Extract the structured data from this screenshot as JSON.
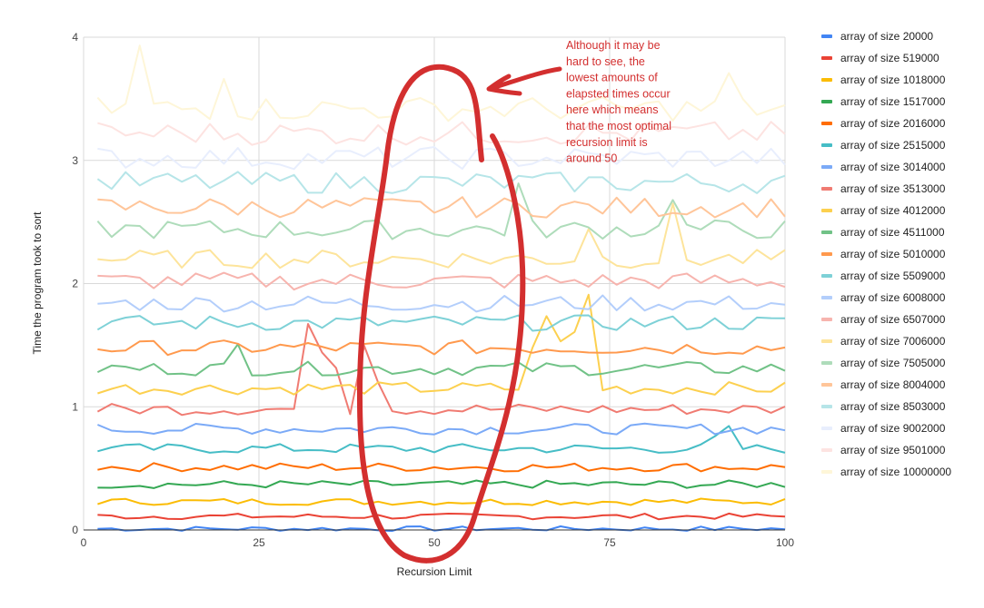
{
  "chart_data": {
    "type": "line",
    "title": "",
    "xlabel": "Recursion Limit",
    "ylabel": "Time the program took to sort",
    "xlim": [
      0,
      100
    ],
    "ylim": [
      0,
      4
    ],
    "x_ticks": [
      "0",
      "25",
      "50",
      "75",
      "100"
    ],
    "y_ticks": [
      "0",
      "1",
      "2",
      "3",
      "4"
    ],
    "grid": true,
    "legend_position": "right",
    "annotation": {
      "lines": [
        "Although it may be",
        "hard to see, the",
        "lowest amounts of",
        "elapsted times occur",
        "here which means",
        "that the most optimal",
        "recursion limit is",
        "around 50"
      ],
      "color": "#d32f2f"
    },
    "series": [
      {
        "name": "array of size 20000",
        "color": "#4285f4",
        "base": 0.01,
        "opacity": 1
      },
      {
        "name": "array of size 519000",
        "color": "#ea4335",
        "base": 0.11,
        "opacity": 1
      },
      {
        "name": "array of size 1018000",
        "color": "#fbbc04",
        "base": 0.23,
        "opacity": 1
      },
      {
        "name": "array of size 1517000",
        "color": "#34a853",
        "base": 0.37,
        "opacity": 1
      },
      {
        "name": "array of size 2016000",
        "color": "#ff6d01",
        "base": 0.51,
        "opacity": 1
      },
      {
        "name": "array of size 2515000",
        "color": "#46bdc6",
        "base": 0.66,
        "opacity": 1
      },
      {
        "name": "array of size 3014000",
        "color": "#7baaf7",
        "base": 0.82,
        "opacity": 1
      },
      {
        "name": "array of size 3513000",
        "color": "#f07b72",
        "base": 0.98,
        "opacity": 1
      },
      {
        "name": "array of size 4012000",
        "color": "#fcd04f",
        "base": 1.15,
        "opacity": 1
      },
      {
        "name": "array of size 4511000",
        "color": "#71c287",
        "base": 1.31,
        "opacity": 1
      },
      {
        "name": "array of size 5010000",
        "color": "#ff994d",
        "base": 1.48,
        "opacity": 1
      },
      {
        "name": "array of size 5509000",
        "color": "#7ed1d7",
        "base": 1.68,
        "opacity": 1
      },
      {
        "name": "array of size 6008000",
        "color": "#b3cefb",
        "base": 1.84,
        "opacity": 1
      },
      {
        "name": "array of size 6507000",
        "color": "#f7b4ae",
        "base": 2.02,
        "opacity": 1
      },
      {
        "name": "array of size 7006000",
        "color": "#fde49b",
        "base": 2.2,
        "opacity": 1
      },
      {
        "name": "array of size 7505000",
        "color": "#aedcba",
        "base": 2.44,
        "opacity": 1
      },
      {
        "name": "array of size 8004000",
        "color": "#ffc599",
        "base": 2.62,
        "opacity": 1
      },
      {
        "name": "array of size 8503000",
        "color": "#b6e5e8",
        "base": 2.82,
        "opacity": 1
      },
      {
        "name": "array of size 9002000",
        "color": "#e8eefd",
        "base": 3.02,
        "opacity": 1
      },
      {
        "name": "array of size 9501000",
        "color": "#fde3e1",
        "base": 3.22,
        "opacity": 1
      },
      {
        "name": "array of size 10000000",
        "color": "#fef6d8",
        "base": 3.42,
        "opacity": 1
      }
    ]
  }
}
